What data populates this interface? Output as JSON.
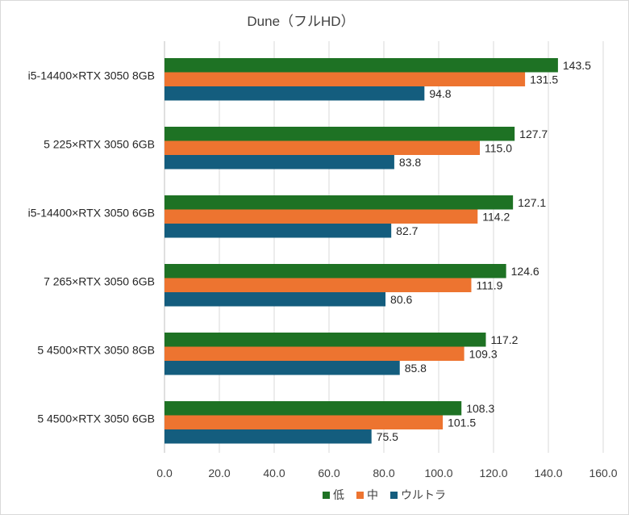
{
  "chart_data": {
    "type": "bar",
    "orientation": "horizontal",
    "title": "Dune（フルHD）",
    "xlabel": "",
    "ylabel": "",
    "xlim": [
      0,
      160
    ],
    "x_ticks": [
      "0.0",
      "20.0",
      "40.0",
      "60.0",
      "80.0",
      "100.0",
      "120.0",
      "140.0",
      "160.0"
    ],
    "grid": "vertical major gridlines",
    "legend_position": "bottom",
    "categories": [
      "i5-14400×RTX 3050 8GB",
      "5 225×RTX 3050 6GB",
      "i5-14400×RTX 3050 6GB",
      "7 265×RTX 3050 6GB",
      "5 4500×RTX 3050 8GB",
      "5 4500×RTX 3050 6GB"
    ],
    "series": [
      {
        "name": "低",
        "color": "#1e7224",
        "values": [
          143.5,
          127.7,
          127.1,
          124.6,
          117.2,
          108.3
        ],
        "labels": [
          "143.5",
          "127.7",
          "127.1",
          "124.6",
          "117.2",
          "108.3"
        ]
      },
      {
        "name": "中",
        "color": "#ed7430",
        "values": [
          131.5,
          115.0,
          114.2,
          111.9,
          109.3,
          101.5
        ],
        "labels": [
          "131.5",
          "115.0",
          "114.2",
          "111.9",
          "109.3",
          "101.5"
        ]
      },
      {
        "name": "ウルトラ",
        "color": "#145d7e",
        "values": [
          94.8,
          83.8,
          82.7,
          80.6,
          85.8,
          75.5
        ],
        "labels": [
          "94.8",
          "83.8",
          "82.7",
          "80.6",
          "85.8",
          "75.5"
        ]
      }
    ],
    "colors": {
      "grid": "#d9d9d9",
      "text": "#404040"
    }
  }
}
